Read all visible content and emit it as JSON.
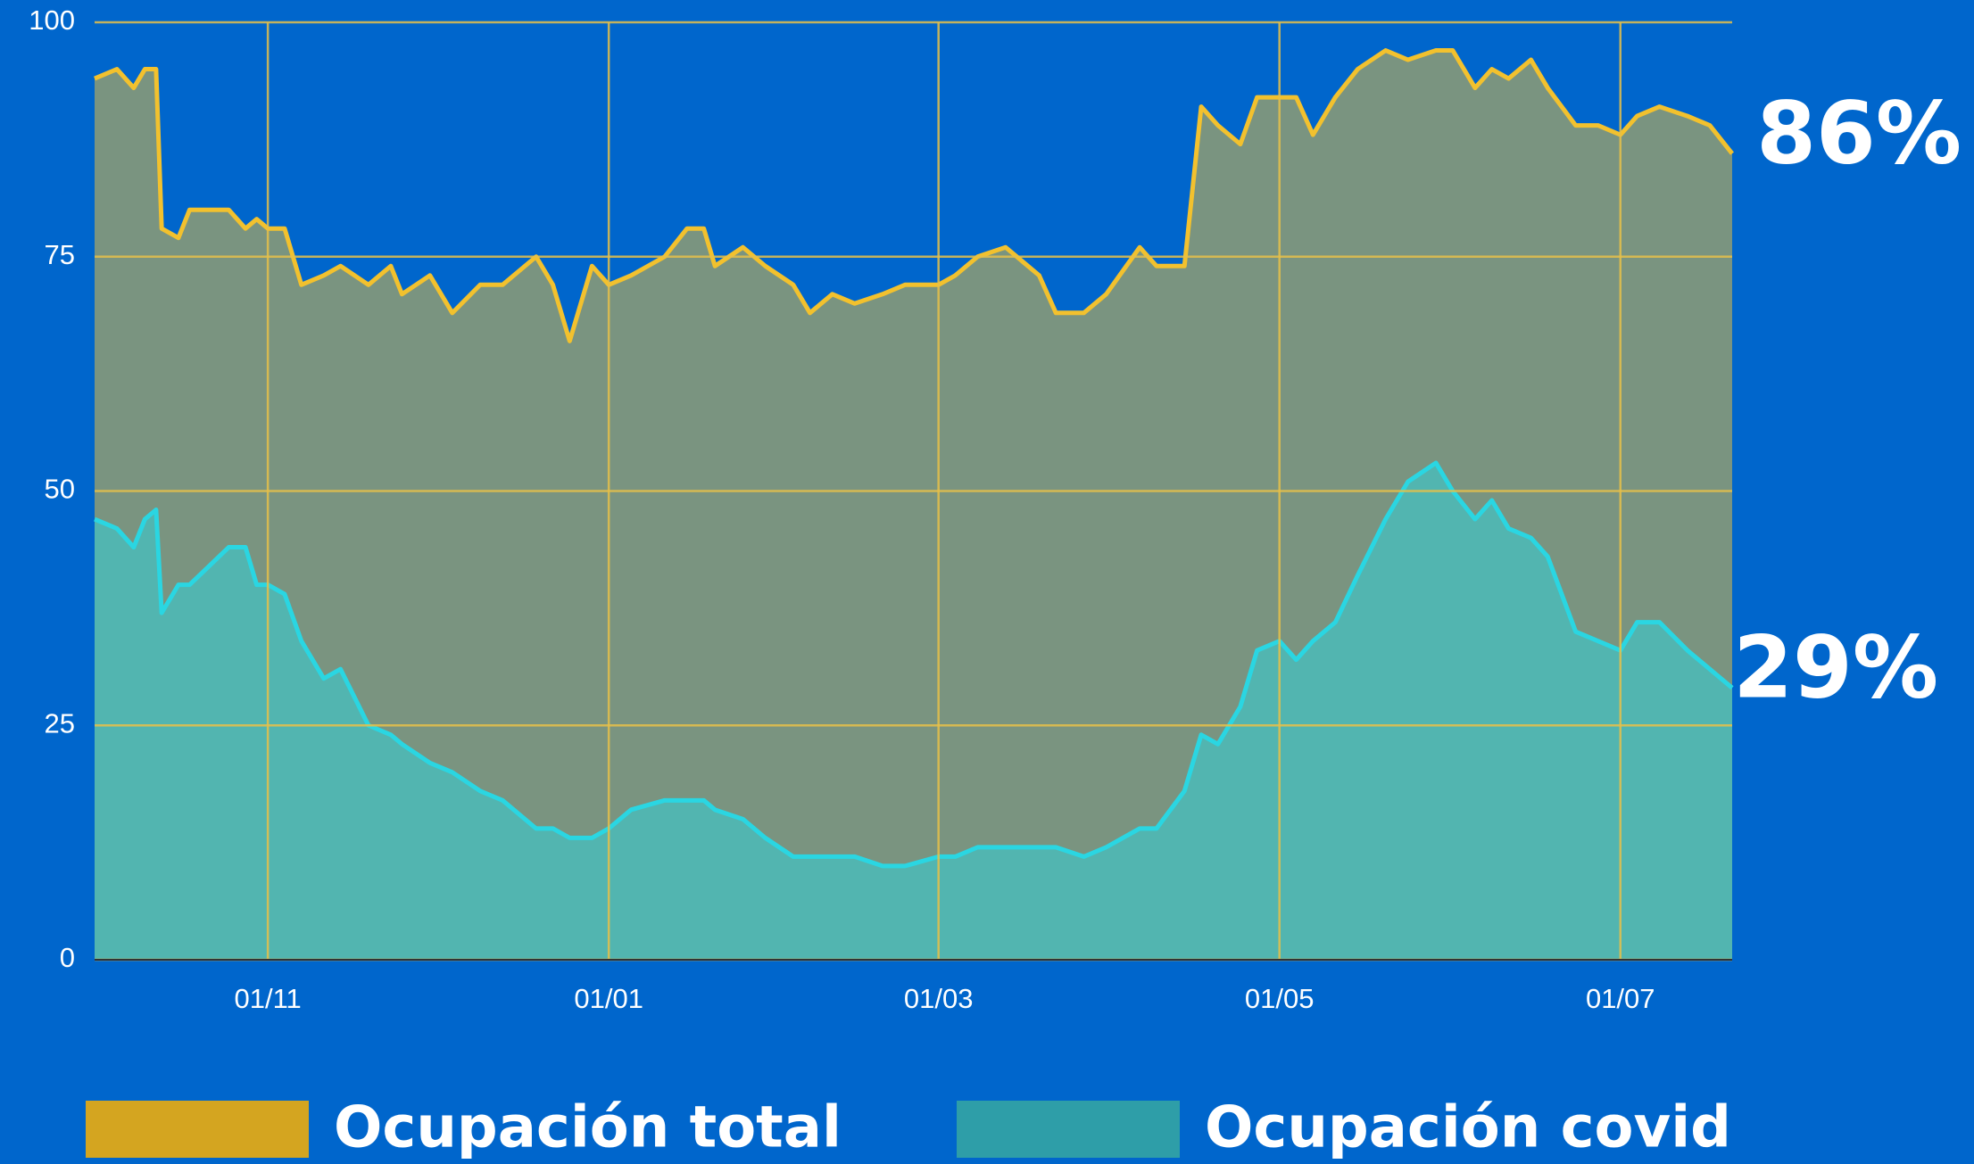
{
  "chart_data": {
    "type": "area",
    "x": [
      "01/10",
      "05/10",
      "08/10",
      "10/10",
      "12/10",
      "13/10",
      "16/10",
      "18/10",
      "25/10",
      "28/10",
      "30/10",
      "01/11",
      "04/11",
      "07/11",
      "11/11",
      "14/11",
      "19/11",
      "23/11",
      "25/11",
      "30/11",
      "04/12",
      "09/12",
      "13/12",
      "19/12",
      "22/12",
      "25/12",
      "29/12",
      "01/01",
      "05/01",
      "11/01",
      "15/01",
      "18/01",
      "20/01",
      "25/01",
      "29/01",
      "03/02",
      "06/02",
      "10/02",
      "14/02",
      "19/02",
      "23/02",
      "01/03",
      "04/03",
      "08/03",
      "13/03",
      "19/03",
      "22/03",
      "27/03",
      "31/03",
      "06/04",
      "09/04",
      "14/04",
      "17/04",
      "20/04",
      "24/04",
      "27/04",
      "01/05",
      "04/05",
      "07/05",
      "11/05",
      "15/05",
      "20/05",
      "24/05",
      "29/05",
      "01/06",
      "05/06",
      "08/06",
      "11/06",
      "15/06",
      "18/06",
      "23/06",
      "27/06",
      "01/07",
      "04/07",
      "08/07",
      "13/07",
      "17/07",
      "21/07"
    ],
    "series": [
      {
        "name": "Ocupación total",
        "color": "#f2c12e",
        "fill": "#7a9480",
        "legend_color": "#d4a520",
        "values": [
          94,
          95,
          93,
          95,
          95,
          78,
          77,
          80,
          80,
          78,
          79,
          78,
          78,
          72,
          73,
          74,
          72,
          74,
          71,
          73,
          69,
          72,
          72,
          75,
          72,
          66,
          74,
          72,
          73,
          75,
          78,
          78,
          74,
          76,
          74,
          72,
          69,
          71,
          70,
          71,
          72,
          72,
          73,
          75,
          76,
          73,
          69,
          69,
          71,
          76,
          74,
          74,
          91,
          89,
          87,
          92,
          92,
          92,
          88,
          92,
          95,
          97,
          96,
          97,
          97,
          93,
          95,
          94,
          96,
          93,
          89,
          89,
          88,
          90,
          91,
          90,
          89,
          86
        ]
      },
      {
        "name": "Ocupación covid",
        "color": "#2ad6e2",
        "fill": "#52b5b0",
        "legend_color": "#2e9ea8",
        "values": [
          47,
          46,
          44,
          47,
          48,
          37,
          40,
          40,
          44,
          44,
          40,
          40,
          39,
          34,
          30,
          31,
          25,
          24,
          23,
          21,
          20,
          18,
          17,
          14,
          14,
          13,
          13,
          14,
          16,
          17,
          17,
          17,
          16,
          15,
          13,
          11,
          11,
          11,
          11,
          10,
          10,
          11,
          11,
          12,
          12,
          12,
          12,
          11,
          12,
          14,
          14,
          18,
          24,
          23,
          27,
          33,
          34,
          32,
          34,
          36,
          41,
          47,
          51,
          53,
          50,
          47,
          49,
          46,
          45,
          43,
          35,
          34,
          33,
          36,
          36,
          33,
          31,
          29
        ]
      }
    ],
    "xlim": [
      "01/10",
      "21/07"
    ],
    "xticks": [
      "01/11",
      "01/01",
      "01/03",
      "01/05",
      "01/07"
    ],
    "ylim": [
      0,
      100
    ],
    "yticks": [
      0,
      25,
      50,
      75,
      100
    ],
    "grid": true,
    "grid_color": "#e6c04a",
    "annotations": [
      {
        "text": "86%",
        "y": 86
      },
      {
        "text": "29%",
        "y": 29
      }
    ]
  }
}
